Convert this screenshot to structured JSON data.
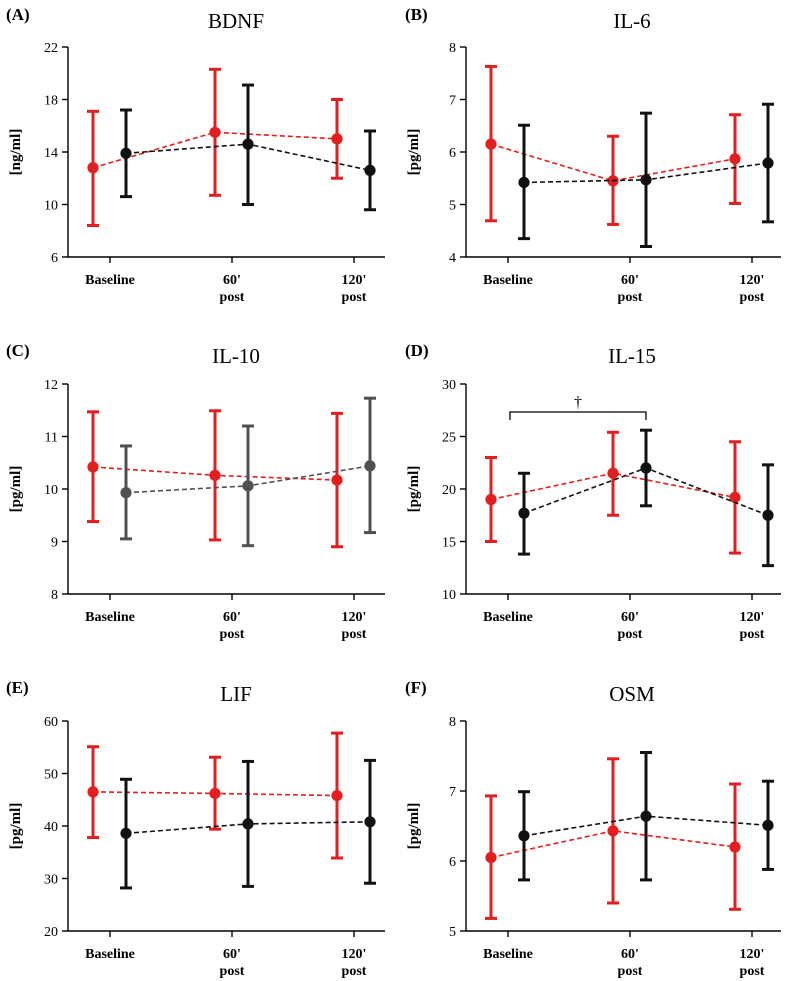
{
  "figure": {
    "ylabel": "[pg/ml]"
  },
  "chart_data": [
    {
      "panel": "(A)",
      "title": "BDNF",
      "type": "line",
      "ylabel": "[ng/ml]",
      "ylim": [
        6,
        22
      ],
      "yticks": [
        6,
        10,
        14,
        18,
        22
      ],
      "categories": [
        [
          "Baseline"
        ],
        [
          "60'",
          "post"
        ],
        [
          "120'",
          "post"
        ]
      ],
      "series": [
        {
          "name": "red",
          "color": "#e41e1e",
          "values": [
            12.8,
            15.5,
            15.0
          ],
          "lower": [
            8.4,
            10.7,
            12.0
          ],
          "upper": [
            17.1,
            20.3,
            18.0
          ]
        },
        {
          "name": "black",
          "color": "#111111",
          "values": [
            13.9,
            14.6,
            12.6
          ],
          "lower": [
            10.6,
            10.0,
            9.6
          ],
          "upper": [
            17.2,
            19.1,
            15.6
          ]
        }
      ]
    },
    {
      "panel": "(B)",
      "title": "IL-6",
      "type": "line",
      "ylabel": "[pg/ml]",
      "ylim": [
        4,
        8
      ],
      "yticks": [
        4,
        5,
        6,
        7,
        8
      ],
      "categories": [
        [
          "Baseline"
        ],
        [
          "60'",
          "post"
        ],
        [
          "120'",
          "post"
        ]
      ],
      "series": [
        {
          "name": "red",
          "color": "#e41e1e",
          "values": [
            6.15,
            5.45,
            5.87
          ],
          "lower": [
            4.69,
            4.62,
            5.02
          ],
          "upper": [
            7.63,
            6.3,
            6.71
          ]
        },
        {
          "name": "black",
          "color": "#111111",
          "values": [
            5.42,
            5.47,
            5.79
          ],
          "lower": [
            4.35,
            4.2,
            4.67
          ],
          "upper": [
            6.51,
            6.74,
            6.91
          ]
        }
      ]
    },
    {
      "panel": "(C)",
      "title": "IL-10",
      "type": "line",
      "ylabel": "[pg/ml]",
      "ylim": [
        8,
        12
      ],
      "yticks": [
        8,
        9,
        10,
        11,
        12
      ],
      "categories": [
        [
          "Baseline"
        ],
        [
          "60'",
          "post"
        ],
        [
          "120'",
          "post"
        ]
      ],
      "series": [
        {
          "name": "red",
          "color": "#e41e1e",
          "values": [
            10.42,
            10.26,
            10.17
          ],
          "lower": [
            9.38,
            9.03,
            8.9
          ],
          "upper": [
            11.47,
            11.49,
            11.44
          ]
        },
        {
          "name": "gray",
          "color": "#505050",
          "values": [
            9.93,
            10.06,
            10.44
          ],
          "lower": [
            9.05,
            8.92,
            9.17
          ],
          "upper": [
            10.82,
            11.2,
            11.73
          ]
        }
      ]
    },
    {
      "panel": "(D)",
      "title": "IL-15",
      "type": "line",
      "ylabel": "[pg/ml]",
      "ylim": [
        10,
        30
      ],
      "yticks": [
        10,
        15,
        20,
        25,
        30
      ],
      "categories": [
        [
          "Baseline"
        ],
        [
          "60'",
          "post"
        ],
        [
          "120'",
          "post"
        ]
      ],
      "annotation": "†",
      "series": [
        {
          "name": "red",
          "color": "#e41e1e",
          "values": [
            19.0,
            21.5,
            19.2
          ],
          "lower": [
            15.0,
            17.5,
            13.9
          ],
          "upper": [
            23.0,
            25.4,
            24.5
          ]
        },
        {
          "name": "black",
          "color": "#111111",
          "values": [
            17.7,
            22.0,
            17.5
          ],
          "lower": [
            13.8,
            18.4,
            12.7
          ],
          "upper": [
            21.5,
            25.6,
            22.3
          ]
        }
      ]
    },
    {
      "panel": "(E)",
      "title": "LIF",
      "type": "line",
      "ylabel": "[pg/ml]",
      "ylim": [
        20,
        60
      ],
      "yticks": [
        20,
        30,
        40,
        50,
        60
      ],
      "categories": [
        [
          "Baseline"
        ],
        [
          "60'",
          "post"
        ],
        [
          "120'",
          "post"
        ]
      ],
      "series": [
        {
          "name": "red",
          "color": "#e41e1e",
          "values": [
            46.5,
            46.2,
            45.8
          ],
          "lower": [
            37.8,
            39.4,
            33.9
          ],
          "upper": [
            55.1,
            53.1,
            57.7
          ]
        },
        {
          "name": "black",
          "color": "#111111",
          "values": [
            38.6,
            40.4,
            40.8
          ],
          "lower": [
            28.2,
            28.5,
            29.1
          ],
          "upper": [
            48.9,
            52.3,
            52.5
          ]
        }
      ]
    },
    {
      "panel": "(F)",
      "title": "OSM",
      "type": "line",
      "ylabel": "[pg/ml]",
      "ylim": [
        5,
        8
      ],
      "yticks": [
        5,
        6,
        7,
        8
      ],
      "categories": [
        [
          "Baseline"
        ],
        [
          "60'",
          "post"
        ],
        [
          "120'",
          "post"
        ]
      ],
      "series": [
        {
          "name": "red",
          "color": "#e41e1e",
          "values": [
            6.05,
            6.43,
            6.2
          ],
          "lower": [
            5.18,
            5.4,
            5.31
          ],
          "upper": [
            6.93,
            7.46,
            7.1
          ]
        },
        {
          "name": "black",
          "color": "#111111",
          "values": [
            6.36,
            6.64,
            6.51
          ],
          "lower": [
            5.73,
            5.73,
            5.88
          ],
          "upper": [
            6.99,
            7.55,
            7.14
          ]
        }
      ]
    }
  ]
}
